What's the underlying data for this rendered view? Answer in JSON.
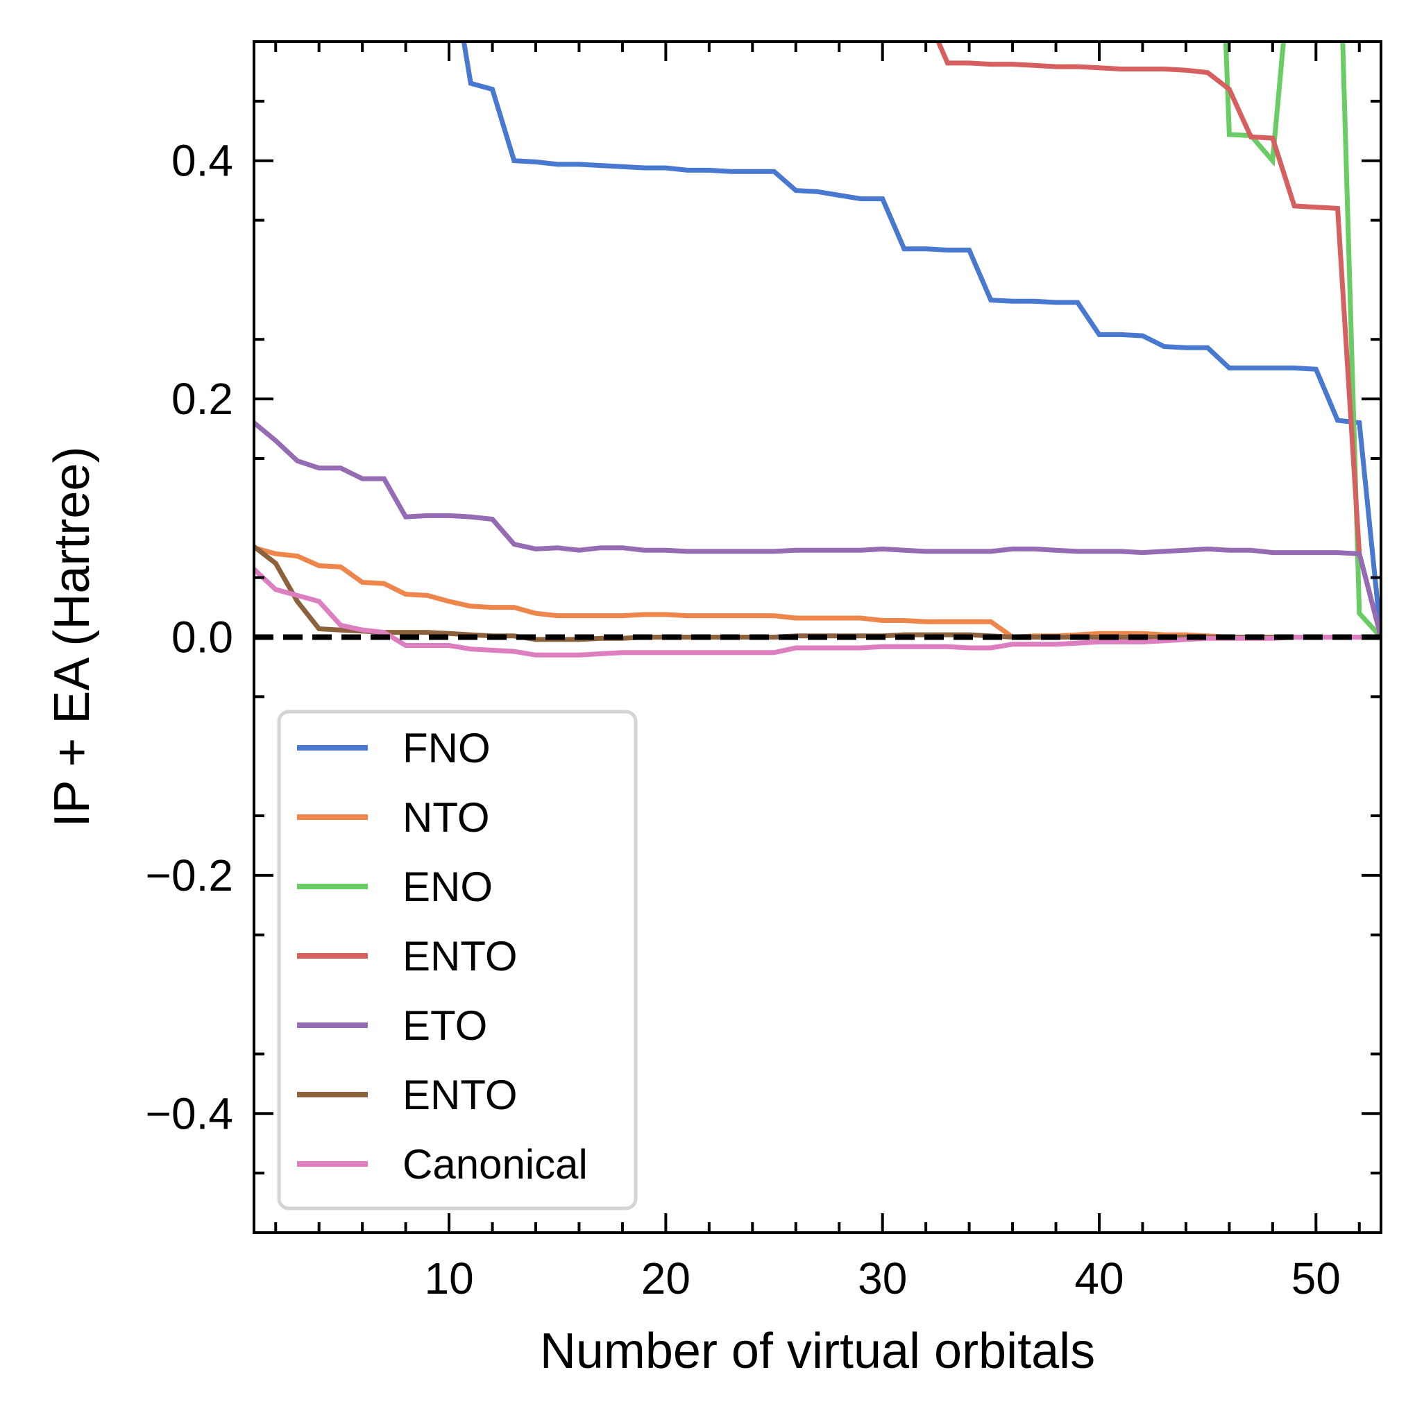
{
  "chart_data": {
    "type": "line",
    "xlabel": "Number of virtual orbitals",
    "ylabel": "IP + EA (Hartree)",
    "xlim": [
      1,
      53
    ],
    "ylim": [
      -0.5,
      0.5
    ],
    "xticks": [
      10,
      20,
      30,
      40,
      50
    ],
    "xtick_labels": [
      "10",
      "20",
      "30",
      "40",
      "50"
    ],
    "yticks": [
      -0.4,
      -0.2,
      0.0,
      0.2,
      0.4
    ],
    "ytick_labels": [
      "−0.4",
      "−0.2",
      "0.0",
      "0.2",
      "0.4"
    ],
    "grid": false,
    "legend_position": "lower-left",
    "reference_line": {
      "y": 0.0,
      "style": "dashed",
      "color": "#000000"
    },
    "series": [
      {
        "name": "FNO",
        "color": "#4878d0",
        "points": [
          [
            10.5,
            0.52
          ],
          [
            11,
            0.465
          ],
          [
            12,
            0.46
          ],
          [
            13,
            0.4
          ],
          [
            14,
            0.399
          ],
          [
            15,
            0.397
          ],
          [
            16,
            0.397
          ],
          [
            17,
            0.396
          ],
          [
            18,
            0.395
          ],
          [
            19,
            0.394
          ],
          [
            20,
            0.394
          ],
          [
            21,
            0.392
          ],
          [
            22,
            0.392
          ],
          [
            23,
            0.391
          ],
          [
            24,
            0.391
          ],
          [
            25,
            0.391
          ],
          [
            26,
            0.375
          ],
          [
            27,
            0.374
          ],
          [
            28,
            0.371
          ],
          [
            29,
            0.368
          ],
          [
            30,
            0.368
          ],
          [
            31,
            0.326
          ],
          [
            32,
            0.326
          ],
          [
            33,
            0.325
          ],
          [
            34,
            0.325
          ],
          [
            35,
            0.283
          ],
          [
            36,
            0.282
          ],
          [
            37,
            0.282
          ],
          [
            38,
            0.281
          ],
          [
            39,
            0.281
          ],
          [
            40,
            0.254
          ],
          [
            41,
            0.254
          ],
          [
            42,
            0.253
          ],
          [
            43,
            0.244
          ],
          [
            44,
            0.243
          ],
          [
            45,
            0.243
          ],
          [
            46,
            0.226
          ],
          [
            47,
            0.226
          ],
          [
            48,
            0.226
          ],
          [
            49,
            0.226
          ],
          [
            50,
            0.225
          ],
          [
            51,
            0.182
          ],
          [
            52,
            0.18
          ],
          [
            53,
            0.0
          ]
        ]
      },
      {
        "name": "NTO",
        "color": "#ee854a",
        "points": [
          [
            1,
            0.075
          ],
          [
            2,
            0.07
          ],
          [
            3,
            0.068
          ],
          [
            4,
            0.06
          ],
          [
            5,
            0.059
          ],
          [
            6,
            0.046
          ],
          [
            7,
            0.045
          ],
          [
            8,
            0.036
          ],
          [
            9,
            0.035
          ],
          [
            10,
            0.03
          ],
          [
            11,
            0.026
          ],
          [
            12,
            0.025
          ],
          [
            13,
            0.025
          ],
          [
            14,
            0.02
          ],
          [
            15,
            0.018
          ],
          [
            16,
            0.018
          ],
          [
            17,
            0.018
          ],
          [
            18,
            0.018
          ],
          [
            19,
            0.019
          ],
          [
            20,
            0.019
          ],
          [
            21,
            0.018
          ],
          [
            22,
            0.018
          ],
          [
            23,
            0.018
          ],
          [
            24,
            0.018
          ],
          [
            25,
            0.018
          ],
          [
            26,
            0.016
          ],
          [
            27,
            0.016
          ],
          [
            28,
            0.016
          ],
          [
            29,
            0.016
          ],
          [
            30,
            0.014
          ],
          [
            31,
            0.014
          ],
          [
            32,
            0.013
          ],
          [
            33,
            0.013
          ],
          [
            34,
            0.013
          ],
          [
            35,
            0.013
          ],
          [
            36,
            0.0
          ],
          [
            37,
            0.001
          ],
          [
            38,
            0.001
          ],
          [
            39,
            0.002
          ],
          [
            40,
            0.003
          ],
          [
            41,
            0.003
          ],
          [
            42,
            0.003
          ],
          [
            43,
            0.002
          ],
          [
            44,
            0.002
          ],
          [
            45,
            0.001
          ],
          [
            46,
            0.0
          ],
          [
            47,
            0.0
          ],
          [
            48,
            0.0
          ],
          [
            49,
            0.0
          ],
          [
            50,
            0.0
          ],
          [
            51,
            0.0
          ],
          [
            52,
            0.0
          ],
          [
            53,
            0.0
          ]
        ]
      },
      {
        "name": "ENO",
        "color": "#6acc64",
        "points": [
          [
            45.8,
            0.52
          ],
          [
            46,
            0.422
          ],
          [
            47,
            0.421
          ],
          [
            48,
            0.4
          ],
          [
            48.6,
            0.52
          ],
          [
            51.2,
            0.52
          ],
          [
            52,
            0.02
          ],
          [
            53,
            0.0
          ]
        ]
      },
      {
        "name": "ENTO",
        "color": "#d65f5f",
        "points": [
          [
            32.1,
            0.52
          ],
          [
            33,
            0.482
          ],
          [
            34,
            0.482
          ],
          [
            35,
            0.481
          ],
          [
            36,
            0.481
          ],
          [
            37,
            0.48
          ],
          [
            38,
            0.479
          ],
          [
            39,
            0.479
          ],
          [
            40,
            0.478
          ],
          [
            41,
            0.477
          ],
          [
            42,
            0.477
          ],
          [
            43,
            0.477
          ],
          [
            44,
            0.476
          ],
          [
            45,
            0.474
          ],
          [
            46,
            0.46
          ],
          [
            47,
            0.42
          ],
          [
            48,
            0.419
          ],
          [
            49,
            0.362
          ],
          [
            50,
            0.361
          ],
          [
            51,
            0.36
          ],
          [
            52,
            0.07
          ],
          [
            53,
            0.0
          ]
        ]
      },
      {
        "name": "ETO",
        "color": "#956cb4",
        "points": [
          [
            1,
            0.18
          ],
          [
            2,
            0.165
          ],
          [
            3,
            0.148
          ],
          [
            4,
            0.142
          ],
          [
            5,
            0.142
          ],
          [
            6,
            0.133
          ],
          [
            7,
            0.133
          ],
          [
            8,
            0.101
          ],
          [
            9,
            0.102
          ],
          [
            10,
            0.102
          ],
          [
            11,
            0.101
          ],
          [
            12,
            0.099
          ],
          [
            13,
            0.078
          ],
          [
            14,
            0.074
          ],
          [
            15,
            0.075
          ],
          [
            16,
            0.073
          ],
          [
            17,
            0.075
          ],
          [
            18,
            0.075
          ],
          [
            19,
            0.073
          ],
          [
            20,
            0.073
          ],
          [
            21,
            0.072
          ],
          [
            22,
            0.072
          ],
          [
            23,
            0.072
          ],
          [
            24,
            0.072
          ],
          [
            25,
            0.072
          ],
          [
            26,
            0.073
          ],
          [
            27,
            0.073
          ],
          [
            28,
            0.073
          ],
          [
            29,
            0.073
          ],
          [
            30,
            0.074
          ],
          [
            31,
            0.073
          ],
          [
            32,
            0.072
          ],
          [
            33,
            0.072
          ],
          [
            34,
            0.072
          ],
          [
            35,
            0.072
          ],
          [
            36,
            0.074
          ],
          [
            37,
            0.074
          ],
          [
            38,
            0.073
          ],
          [
            39,
            0.072
          ],
          [
            40,
            0.072
          ],
          [
            41,
            0.072
          ],
          [
            42,
            0.071
          ],
          [
            43,
            0.072
          ],
          [
            44,
            0.073
          ],
          [
            45,
            0.074
          ],
          [
            46,
            0.073
          ],
          [
            47,
            0.073
          ],
          [
            48,
            0.071
          ],
          [
            49,
            0.071
          ],
          [
            50,
            0.071
          ],
          [
            51,
            0.071
          ],
          [
            52,
            0.07
          ],
          [
            53,
            0.0
          ]
        ]
      },
      {
        "name": "ENTO",
        "color": "#8c613c",
        "points": [
          [
            1,
            0.076
          ],
          [
            2,
            0.062
          ],
          [
            3,
            0.03
          ],
          [
            4,
            0.007
          ],
          [
            5,
            0.006
          ],
          [
            6,
            0.005
          ],
          [
            7,
            0.004
          ],
          [
            8,
            0.004
          ],
          [
            9,
            0.004
          ],
          [
            10,
            0.003
          ],
          [
            11,
            0.002
          ],
          [
            12,
            0.001
          ],
          [
            13,
            0.001
          ],
          [
            14,
            -0.002
          ],
          [
            15,
            -0.002
          ],
          [
            16,
            -0.002
          ],
          [
            17,
            -0.001
          ],
          [
            18,
            -0.001
          ],
          [
            19,
            0.0
          ],
          [
            20,
            0.0
          ],
          [
            21,
            0.0
          ],
          [
            22,
            0.0
          ],
          [
            23,
            0.0
          ],
          [
            24,
            0.0
          ],
          [
            25,
            0.0
          ],
          [
            26,
            0.001
          ],
          [
            27,
            0.001
          ],
          [
            28,
            0.001
          ],
          [
            29,
            0.001
          ],
          [
            30,
            0.001
          ],
          [
            31,
            0.002
          ],
          [
            32,
            0.002
          ],
          [
            33,
            0.002
          ],
          [
            34,
            0.002
          ],
          [
            35,
            0.001
          ],
          [
            36,
            0.0
          ],
          [
            37,
            0.0
          ],
          [
            38,
            0.0
          ],
          [
            39,
            0.0
          ],
          [
            40,
            0.0
          ],
          [
            41,
            0.0
          ],
          [
            42,
            0.0
          ],
          [
            43,
            0.0
          ],
          [
            44,
            0.0
          ],
          [
            45,
            0.0
          ],
          [
            46,
            0.0
          ],
          [
            47,
            0.0
          ],
          [
            48,
            0.0
          ],
          [
            49,
            0.0
          ],
          [
            50,
            0.0
          ],
          [
            51,
            0.0
          ],
          [
            52,
            0.0
          ],
          [
            53,
            0.0
          ]
        ]
      },
      {
        "name": "Canonical",
        "color": "#dc7ec0",
        "points": [
          [
            1,
            0.057
          ],
          [
            2,
            0.04
          ],
          [
            3,
            0.035
          ],
          [
            4,
            0.03
          ],
          [
            5,
            0.01
          ],
          [
            6,
            0.006
          ],
          [
            7,
            0.004
          ],
          [
            8,
            -0.007
          ],
          [
            9,
            -0.007
          ],
          [
            10,
            -0.007
          ],
          [
            11,
            -0.01
          ],
          [
            12,
            -0.011
          ],
          [
            13,
            -0.012
          ],
          [
            14,
            -0.015
          ],
          [
            15,
            -0.015
          ],
          [
            16,
            -0.015
          ],
          [
            17,
            -0.014
          ],
          [
            18,
            -0.013
          ],
          [
            19,
            -0.013
          ],
          [
            20,
            -0.013
          ],
          [
            21,
            -0.013
          ],
          [
            22,
            -0.013
          ],
          [
            23,
            -0.013
          ],
          [
            24,
            -0.013
          ],
          [
            25,
            -0.013
          ],
          [
            26,
            -0.009
          ],
          [
            27,
            -0.009
          ],
          [
            28,
            -0.009
          ],
          [
            29,
            -0.009
          ],
          [
            30,
            -0.008
          ],
          [
            31,
            -0.008
          ],
          [
            32,
            -0.008
          ],
          [
            33,
            -0.008
          ],
          [
            34,
            -0.009
          ],
          [
            35,
            -0.009
          ],
          [
            36,
            -0.006
          ],
          [
            37,
            -0.006
          ],
          [
            38,
            -0.006
          ],
          [
            39,
            -0.005
          ],
          [
            40,
            -0.004
          ],
          [
            41,
            -0.004
          ],
          [
            42,
            -0.004
          ],
          [
            43,
            -0.003
          ],
          [
            44,
            -0.002
          ],
          [
            45,
            -0.001
          ],
          [
            46,
            -0.001
          ],
          [
            47,
            -0.001
          ],
          [
            48,
            -0.001
          ],
          [
            49,
            0.0
          ],
          [
            50,
            0.0
          ],
          [
            51,
            0.0
          ],
          [
            52,
            0.0
          ],
          [
            53,
            0.0
          ]
        ]
      }
    ]
  }
}
